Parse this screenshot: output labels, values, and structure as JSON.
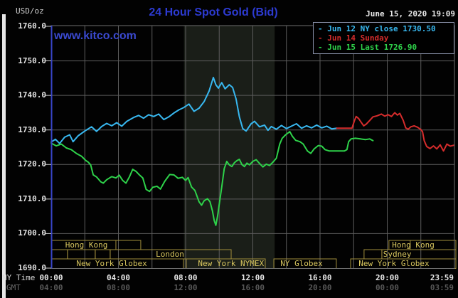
{
  "header": {
    "unit": "USD/oz",
    "title": "24 Hour Spot Gold (Bid)",
    "date": "June 15, 2020 19:09"
  },
  "watermark": "www.kitco.com",
  "axis_captions": {
    "ny": "NY Time",
    "gmt": "GMT"
  },
  "legend": {
    "dash": "-",
    "items": [
      {
        "id": "jun12",
        "text": "Jun 12 NY close 1730.50",
        "color": "#38b8f0"
      },
      {
        "id": "jun14",
        "text": "Jun 14 Sunday",
        "color": "#d62c2c"
      },
      {
        "id": "jun15",
        "text": "Jun 15 Last 1726.90",
        "color": "#2ed24a"
      }
    ]
  },
  "colors": {
    "background": "#020202",
    "title_blue": "#2d3bd2",
    "watermark_blue": "#3a49cf",
    "grid": "#5c5c5c",
    "plot_border": "#6e6e6e",
    "left_axis_blue": "#3845c8",
    "tick": "#cfcfcf",
    "shaded_band": "#1a1e18",
    "session_border": "#a08d3c",
    "session_text": "#d9c75f",
    "line_jun12": "#38b8f0",
    "line_jun14": "#d62c2c",
    "line_jun15": "#2ed24a"
  },
  "chart_data": {
    "type": "line",
    "title": "24 Hour Spot Gold (Bid)",
    "ylabel": "USD/oz",
    "ylim": [
      1690,
      1760
    ],
    "xlim_hours": [
      0,
      24
    ],
    "grid": true,
    "y_ticks": [
      1760,
      1750,
      1740,
      1730,
      1720,
      1710,
      1700,
      1690
    ],
    "x_ticks": [
      {
        "h": 0,
        "ny": "00:00",
        "gmt": "04:00"
      },
      {
        "h": 4,
        "ny": "04:00",
        "gmt": "08:00"
      },
      {
        "h": 8,
        "ny": "08:00",
        "gmt": "12:00"
      },
      {
        "h": 12,
        "ny": "12:00",
        "gmt": "16:00"
      },
      {
        "h": 16,
        "ny": "16:00",
        "gmt": "20:00"
      },
      {
        "h": 20,
        "ny": "20:00",
        "gmt": "00:00"
      },
      {
        "h": 23.98,
        "ny": "23:59",
        "gmt": "03:59",
        "align": "right"
      }
    ],
    "shaded_band_hours": [
      7.9,
      13.3
    ],
    "sessions": [
      {
        "row": 0,
        "label": "Hong Kong",
        "start": 0,
        "end": 5.33,
        "divider": 3.85,
        "label_ch": 2.1
      },
      {
        "row": 0,
        "label": "Hong Kong",
        "start": 20.1,
        "end": 24.1,
        "divider": 21.37,
        "label_ch": 21.55
      },
      {
        "row": 1,
        "label": "",
        "start": 0,
        "end": 0.97
      },
      {
        "row": 1,
        "label": "",
        "start": 0.97,
        "end": 2.62
      },
      {
        "row": 1,
        "label": "",
        "start": 2.62,
        "end": 3.51
      },
      {
        "row": 1,
        "label": "London",
        "start": 3.51,
        "end": 10.71,
        "label_ch": 7.07
      },
      {
        "row": 1,
        "label": "",
        "start": 18.62,
        "end": 19.68
      },
      {
        "row": 1,
        "label": "Sydney",
        "start": 19.68,
        "end": 24.1,
        "label_ch": 20.6
      },
      {
        "row": 2,
        "label": "New York Globex",
        "start": 0,
        "end": 7.87,
        "label_ch": 3.6
      },
      {
        "row": 2,
        "label": "New York NYMEX",
        "start": 8.04,
        "end": 12.74,
        "label_ch": 10.7
      },
      {
        "row": 2,
        "label": "NY Globex",
        "start": 13.25,
        "end": 16.97,
        "label_ch": 14.9
      },
      {
        "row": 2,
        "label": "New York Globex",
        "start": 17.82,
        "end": 24.1,
        "label_ch": 20.4
      }
    ],
    "series": [
      {
        "name": "Jun 12 NY close 1730.50",
        "color": "#38b8f0",
        "points": [
          [
            0,
            1726.5
          ],
          [
            0.25,
            1727.3
          ],
          [
            0.5,
            1726.1
          ],
          [
            0.8,
            1727.9
          ],
          [
            1.1,
            1728.6
          ],
          [
            1.3,
            1726.6
          ],
          [
            1.6,
            1728.3
          ],
          [
            2,
            1729.7
          ],
          [
            2.4,
            1730.9
          ],
          [
            2.7,
            1729.6
          ],
          [
            3,
            1731
          ],
          [
            3.3,
            1731.9
          ],
          [
            3.6,
            1731.2
          ],
          [
            3.9,
            1732.1
          ],
          [
            4.2,
            1731.1
          ],
          [
            4.5,
            1732.5
          ],
          [
            4.9,
            1733.6
          ],
          [
            5.2,
            1734.2
          ],
          [
            5.5,
            1733.4
          ],
          [
            5.8,
            1734.4
          ],
          [
            6.1,
            1733.9
          ],
          [
            6.4,
            1734.6
          ],
          [
            6.7,
            1733
          ],
          [
            7,
            1733.8
          ],
          [
            7.3,
            1734.9
          ],
          [
            7.6,
            1735.8
          ],
          [
            7.9,
            1736.5
          ],
          [
            8.2,
            1737.5
          ],
          [
            8.5,
            1735.4
          ],
          [
            8.8,
            1736.3
          ],
          [
            9.1,
            1738.2
          ],
          [
            9.4,
            1741.3
          ],
          [
            9.65,
            1745.2
          ],
          [
            9.8,
            1743.1
          ],
          [
            9.95,
            1742.1
          ],
          [
            10.15,
            1743.7
          ],
          [
            10.35,
            1741.9
          ],
          [
            10.6,
            1743.1
          ],
          [
            10.8,
            1742.3
          ],
          [
            11,
            1739
          ],
          [
            11.2,
            1733.8
          ],
          [
            11.4,
            1730.4
          ],
          [
            11.6,
            1729.7
          ],
          [
            11.9,
            1731.8
          ],
          [
            12.1,
            1732.5
          ],
          [
            12.4,
            1730.9
          ],
          [
            12.7,
            1731.4
          ],
          [
            12.9,
            1729.9
          ],
          [
            13.1,
            1731
          ],
          [
            13.4,
            1730.2
          ],
          [
            13.7,
            1731.3
          ],
          [
            14,
            1730.4
          ],
          [
            14.3,
            1731.1
          ],
          [
            14.6,
            1731.8
          ],
          [
            14.9,
            1730.5
          ],
          [
            15.2,
            1731.2
          ],
          [
            15.5,
            1730.6
          ],
          [
            15.8,
            1731.4
          ],
          [
            16.1,
            1730.6
          ],
          [
            16.4,
            1731.1
          ],
          [
            16.7,
            1730.3
          ],
          [
            17,
            1730.5
          ]
        ]
      },
      {
        "name": "Jun 14 Sunday",
        "color": "#d62c2c",
        "points": [
          [
            17,
            1730.5
          ],
          [
            17.9,
            1730.5
          ],
          [
            18.05,
            1732.7
          ],
          [
            18.15,
            1733.9
          ],
          [
            18.3,
            1733.3
          ],
          [
            18.45,
            1732.2
          ],
          [
            18.6,
            1731.2
          ],
          [
            18.75,
            1731.7
          ],
          [
            18.95,
            1732.7
          ],
          [
            19.15,
            1733.8
          ],
          [
            19.4,
            1734.1
          ],
          [
            19.65,
            1734.6
          ],
          [
            19.85,
            1734
          ],
          [
            20.05,
            1734.4
          ],
          [
            20.25,
            1733.9
          ],
          [
            20.45,
            1735
          ],
          [
            20.6,
            1734.3
          ],
          [
            20.75,
            1734.8
          ],
          [
            20.95,
            1732.8
          ],
          [
            21.1,
            1730.6
          ],
          [
            21.25,
            1730.2
          ],
          [
            21.4,
            1730.9
          ],
          [
            21.6,
            1731.2
          ],
          [
            21.8,
            1730.8
          ],
          [
            22,
            1730.1
          ],
          [
            22.1,
            1729.5
          ],
          [
            22.2,
            1726.9
          ],
          [
            22.35,
            1725.2
          ],
          [
            22.55,
            1724.6
          ],
          [
            22.75,
            1725.4
          ],
          [
            22.95,
            1724.5
          ],
          [
            23.15,
            1725.7
          ],
          [
            23.35,
            1723.9
          ],
          [
            23.55,
            1725.9
          ],
          [
            23.75,
            1725.3
          ],
          [
            23.98,
            1725.6
          ]
        ]
      },
      {
        "name": "Jun 15 Last 1726.90",
        "color": "#2ed24a",
        "points": [
          [
            0,
            1726.2
          ],
          [
            0.3,
            1725.4
          ],
          [
            0.6,
            1725.9
          ],
          [
            0.9,
            1724.8
          ],
          [
            1.2,
            1724.3
          ],
          [
            1.5,
            1723.2
          ],
          [
            1.8,
            1722.4
          ],
          [
            2.05,
            1721.2
          ],
          [
            2.2,
            1720.7
          ],
          [
            2.35,
            1719.9
          ],
          [
            2.5,
            1717
          ],
          [
            2.7,
            1716.4
          ],
          [
            2.95,
            1715
          ],
          [
            3.1,
            1714.6
          ],
          [
            3.3,
            1715.6
          ],
          [
            3.6,
            1716.5
          ],
          [
            3.85,
            1716.1
          ],
          [
            4.05,
            1716.9
          ],
          [
            4.25,
            1715.4
          ],
          [
            4.45,
            1714.6
          ],
          [
            4.65,
            1716.4
          ],
          [
            4.85,
            1718.6
          ],
          [
            5.05,
            1718
          ],
          [
            5.25,
            1717
          ],
          [
            5.45,
            1716.1
          ],
          [
            5.65,
            1712.8
          ],
          [
            5.85,
            1712.2
          ],
          [
            6.05,
            1713.4
          ],
          [
            6.3,
            1713.7
          ],
          [
            6.5,
            1712.9
          ],
          [
            6.75,
            1715.1
          ],
          [
            7.05,
            1717.1
          ],
          [
            7.3,
            1717
          ],
          [
            7.55,
            1716
          ],
          [
            7.8,
            1716.3
          ],
          [
            8,
            1715.4
          ],
          [
            8.15,
            1716.2
          ],
          [
            8.35,
            1713.5
          ],
          [
            8.55,
            1712.5
          ],
          [
            8.8,
            1709.2
          ],
          [
            8.95,
            1708.2
          ],
          [
            9.1,
            1709.5
          ],
          [
            9.3,
            1710.1
          ],
          [
            9.45,
            1709.2
          ],
          [
            9.6,
            1706.5
          ],
          [
            9.7,
            1703.8
          ],
          [
            9.8,
            1702.4
          ],
          [
            9.9,
            1705
          ],
          [
            10,
            1708.5
          ],
          [
            10.15,
            1713.5
          ],
          [
            10.3,
            1718.8
          ],
          [
            10.45,
            1720.9
          ],
          [
            10.6,
            1719.9
          ],
          [
            10.75,
            1719.4
          ],
          [
            10.9,
            1720.5
          ],
          [
            11.05,
            1721.1
          ],
          [
            11.2,
            1721.5
          ],
          [
            11.35,
            1720
          ],
          [
            11.5,
            1719.4
          ],
          [
            11.65,
            1720.4
          ],
          [
            11.8,
            1719.9
          ],
          [
            12,
            1720.9
          ],
          [
            12.2,
            1721.4
          ],
          [
            12.4,
            1720.3
          ],
          [
            12.6,
            1719.3
          ],
          [
            12.8,
            1720.1
          ],
          [
            13,
            1719.7
          ],
          [
            13.2,
            1720.7
          ],
          [
            13.4,
            1721.8
          ],
          [
            13.6,
            1725.9
          ],
          [
            13.75,
            1727.6
          ],
          [
            13.95,
            1728.6
          ],
          [
            14.2,
            1729.5
          ],
          [
            14.35,
            1728.2
          ],
          [
            14.55,
            1727
          ],
          [
            14.8,
            1726.6
          ],
          [
            15,
            1725.9
          ],
          [
            15.25,
            1723.9
          ],
          [
            15.45,
            1723.2
          ],
          [
            15.65,
            1724.5
          ],
          [
            15.9,
            1725.5
          ],
          [
            16.1,
            1725.3
          ],
          [
            16.3,
            1724.3
          ],
          [
            16.55,
            1723.9
          ],
          [
            17,
            1723.9
          ],
          [
            17.45,
            1723.9
          ],
          [
            17.6,
            1724.3
          ],
          [
            17.7,
            1726.6
          ],
          [
            17.85,
            1727.4
          ],
          [
            18.1,
            1727.6
          ],
          [
            18.4,
            1727.4
          ],
          [
            18.7,
            1727.2
          ],
          [
            18.95,
            1727.4
          ],
          [
            19.15,
            1726.9
          ]
        ]
      }
    ]
  }
}
